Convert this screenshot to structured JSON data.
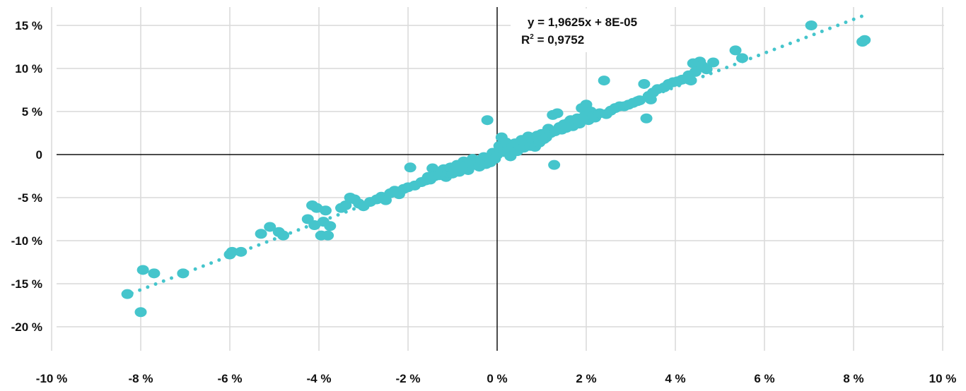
{
  "colors": {
    "points": "#45c5cc",
    "trendline": "#45c5cc",
    "grid": "#d9d9d9",
    "axis": "#111111",
    "text": "#111111",
    "background": "#ffffff"
  },
  "chart_data": {
    "type": "scatter",
    "title": "",
    "xlabel": "",
    "ylabel": "",
    "xlim": [
      -10,
      10
    ],
    "ylim": [
      -25,
      17
    ],
    "grid": true,
    "legend": "none",
    "x_ticks": [
      -10,
      -8,
      -6,
      -4,
      -2,
      0,
      2,
      4,
      6,
      8,
      10
    ],
    "y_ticks": [
      -20,
      -15,
      -10,
      -5,
      0,
      5,
      10,
      15
    ],
    "x_tick_labels": [
      "-10 %",
      "-8 %",
      "-6 %",
      "-4 %",
      "-2 %",
      "0 %",
      "2 %",
      "4 %",
      "6 %",
      "8 %",
      "10 %"
    ],
    "y_tick_labels": [
      "-20 %",
      "-15 %",
      "-10 %",
      "-5 %",
      "0",
      "5 %",
      "10 %",
      "15 %"
    ],
    "trendline": {
      "slope": 1.9625,
      "intercept": 8e-05,
      "x_range": [
        -8.2,
        8.2
      ],
      "style": "dotted",
      "equation_label": "y = 1,9625x + 8E-05",
      "r2_label_prefix": "R",
      "r2_label_sup": "2",
      "r2_label_value": " = 0,9752"
    },
    "series": [
      {
        "points": [
          [
            -8.3,
            -16.2
          ],
          [
            -8.0,
            -18.3
          ],
          [
            -7.95,
            -13.4
          ],
          [
            -7.7,
            -13.8
          ],
          [
            -7.05,
            -13.8
          ],
          [
            -6.0,
            -11.6
          ],
          [
            -5.95,
            -11.3
          ],
          [
            -5.75,
            -11.3
          ],
          [
            -5.3,
            -9.2
          ],
          [
            -5.1,
            -8.4
          ],
          [
            -4.9,
            -9.0
          ],
          [
            -4.8,
            -9.4
          ],
          [
            -4.25,
            -7.5
          ],
          [
            -4.15,
            -5.9
          ],
          [
            -4.05,
            -6.2
          ],
          [
            -4.1,
            -8.2
          ],
          [
            -3.9,
            -7.8
          ],
          [
            -3.95,
            -9.4
          ],
          [
            -3.8,
            -9.4
          ],
          [
            -3.85,
            -6.5
          ],
          [
            -3.75,
            -8.3
          ],
          [
            -3.5,
            -6.2
          ],
          [
            -3.4,
            -5.9
          ],
          [
            -3.3,
            -5.0
          ],
          [
            -3.2,
            -5.2
          ],
          [
            -3.1,
            -5.7
          ],
          [
            -3.0,
            -6.0
          ],
          [
            -2.85,
            -5.5
          ],
          [
            -2.7,
            -5.2
          ],
          [
            -2.6,
            -4.9
          ],
          [
            -2.5,
            -5.3
          ],
          [
            -2.4,
            -4.5
          ],
          [
            -2.3,
            -4.2
          ],
          [
            -2.2,
            -4.6
          ],
          [
            -2.1,
            -4.0
          ],
          [
            -2.0,
            -3.8
          ],
          [
            -1.95,
            -1.5
          ],
          [
            -1.85,
            -3.6
          ],
          [
            -1.7,
            -3.2
          ],
          [
            -1.6,
            -3.0
          ],
          [
            -1.55,
            -2.6
          ],
          [
            -1.5,
            -2.9
          ],
          [
            -1.45,
            -1.6
          ],
          [
            -1.4,
            -2.5
          ],
          [
            -1.3,
            -2.4
          ],
          [
            -1.25,
            -2.0
          ],
          [
            -1.2,
            -1.7
          ],
          [
            -1.15,
            -2.6
          ],
          [
            -1.1,
            -2.1
          ],
          [
            -1.05,
            -1.5
          ],
          [
            -1.0,
            -2.2
          ],
          [
            -0.95,
            -1.8
          ],
          [
            -0.9,
            -1.2
          ],
          [
            -0.85,
            -2.0
          ],
          [
            -0.8,
            -1.6
          ],
          [
            -0.75,
            -0.8
          ],
          [
            -0.7,
            -1.3
          ],
          [
            -0.65,
            -1.8
          ],
          [
            -0.6,
            -1.0
          ],
          [
            -0.55,
            -0.5
          ],
          [
            -0.5,
            -1.2
          ],
          [
            -0.45,
            -0.7
          ],
          [
            -0.4,
            -1.4
          ],
          [
            -0.35,
            -0.6
          ],
          [
            -0.3,
            -0.3
          ],
          [
            -0.25,
            -1.1
          ],
          [
            -0.22,
            4.0
          ],
          [
            -0.2,
            -0.4
          ],
          [
            -0.15,
            -0.9
          ],
          [
            -0.1,
            0.2
          ],
          [
            -0.05,
            -0.5
          ],
          [
            0.0,
            0.0
          ],
          [
            0.05,
            1.0
          ],
          [
            0.08,
            0.5
          ],
          [
            0.1,
            2.0
          ],
          [
            0.15,
            0.3
          ],
          [
            0.2,
            1.4
          ],
          [
            0.25,
            0.6
          ],
          [
            0.3,
            -0.2
          ],
          [
            0.35,
            0.9
          ],
          [
            0.4,
            1.3
          ],
          [
            0.45,
            0.4
          ],
          [
            0.5,
            1.1
          ],
          [
            0.55,
            1.7
          ],
          [
            0.6,
            0.8
          ],
          [
            0.65,
            1.2
          ],
          [
            0.7,
            2.1
          ],
          [
            0.75,
            1.0
          ],
          [
            0.8,
            1.6
          ],
          [
            0.85,
            0.9
          ],
          [
            0.9,
            2.2
          ],
          [
            0.95,
            1.4
          ],
          [
            1.0,
            2.4
          ],
          [
            1.05,
            1.8
          ],
          [
            1.1,
            2.0
          ],
          [
            1.15,
            3.0
          ],
          [
            1.2,
            2.5
          ],
          [
            1.25,
            4.6
          ],
          [
            1.28,
            -1.2
          ],
          [
            1.3,
            2.7
          ],
          [
            1.35,
            4.8
          ],
          [
            1.4,
            3.2
          ],
          [
            1.45,
            2.9
          ],
          [
            1.5,
            3.5
          ],
          [
            1.55,
            3.1
          ],
          [
            1.6,
            3.7
          ],
          [
            1.65,
            4.0
          ],
          [
            1.7,
            3.3
          ],
          [
            1.75,
            3.9
          ],
          [
            1.8,
            4.2
          ],
          [
            1.85,
            3.6
          ],
          [
            1.9,
            5.4
          ],
          [
            1.95,
            4.4
          ],
          [
            2.0,
            5.8
          ],
          [
            2.05,
            4.0
          ],
          [
            2.1,
            5.0
          ],
          [
            2.15,
            4.5
          ],
          [
            2.2,
            4.3
          ],
          [
            2.3,
            4.8
          ],
          [
            2.4,
            8.6
          ],
          [
            2.45,
            4.7
          ],
          [
            2.55,
            5.1
          ],
          [
            2.65,
            5.4
          ],
          [
            2.75,
            5.6
          ],
          [
            2.85,
            5.6
          ],
          [
            2.95,
            5.8
          ],
          [
            3.05,
            6.0
          ],
          [
            3.15,
            6.2
          ],
          [
            3.2,
            6.3
          ],
          [
            3.35,
            4.2
          ],
          [
            3.3,
            8.2
          ],
          [
            3.4,
            6.8
          ],
          [
            3.45,
            6.4
          ],
          [
            3.5,
            7.2
          ],
          [
            3.6,
            7.6
          ],
          [
            3.75,
            7.8
          ],
          [
            3.85,
            8.2
          ],
          [
            3.95,
            8.4
          ],
          [
            4.05,
            8.5
          ],
          [
            4.15,
            8.7
          ],
          [
            4.3,
            9.2
          ],
          [
            4.35,
            8.6
          ],
          [
            4.4,
            10.6
          ],
          [
            4.45,
            9.6
          ],
          [
            4.55,
            10.8
          ],
          [
            4.6,
            10.3
          ],
          [
            4.7,
            9.9
          ],
          [
            4.85,
            10.7
          ],
          [
            5.35,
            12.1
          ],
          [
            5.5,
            11.2
          ],
          [
            7.05,
            15.0
          ],
          [
            8.2,
            13.1
          ],
          [
            8.25,
            13.3
          ]
        ]
      }
    ]
  }
}
